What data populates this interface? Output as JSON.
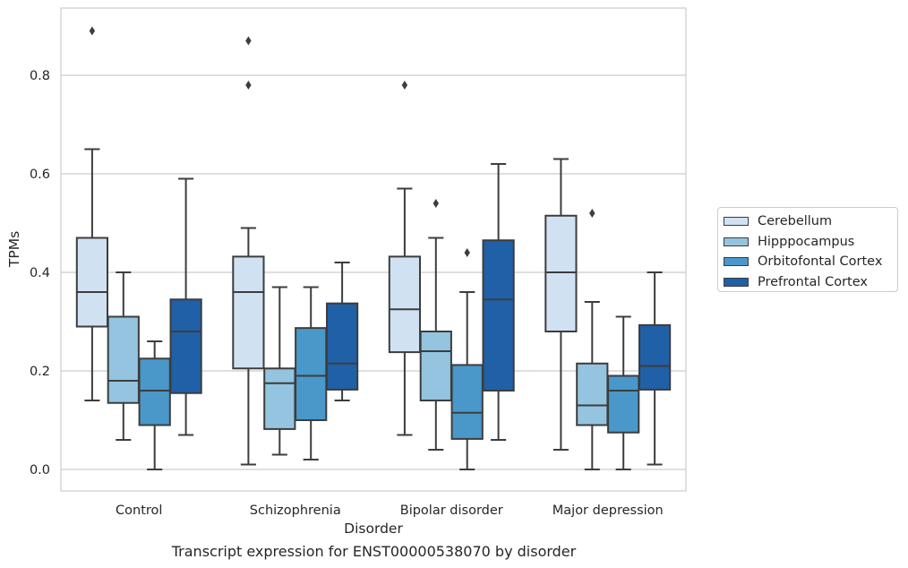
{
  "chart_data": {
    "type": "box",
    "xlabel": "Disorder",
    "ylabel": "TPMs",
    "caption": "Transcript expression for ENST00000538070 by disorder",
    "ylim": [
      -0.045,
      0.935
    ],
    "yticks": [
      "0.0",
      "0.2",
      "0.4",
      "0.6",
      "0.8"
    ],
    "ytick_values": [
      0.0,
      0.2,
      0.4,
      0.6,
      0.8
    ],
    "grid": "horizontal",
    "legend_position": "right",
    "categories": [
      "Control",
      "Schizophrenia",
      "Bipolar disorder",
      "Major depression"
    ],
    "series": [
      {
        "name": "Cerebellum",
        "color": "#d0e1f2",
        "boxes": [
          {
            "whislo": 0.14,
            "q1": 0.29,
            "med": 0.36,
            "q3": 0.47,
            "whishi": 0.65,
            "fliers": [
              0.89
            ]
          },
          {
            "whislo": 0.01,
            "q1": 0.205,
            "med": 0.36,
            "q3": 0.432,
            "whishi": 0.49,
            "fliers": [
              0.78,
              0.87
            ]
          },
          {
            "whislo": 0.07,
            "q1": 0.238,
            "med": 0.325,
            "q3": 0.432,
            "whishi": 0.57,
            "fliers": [
              0.78
            ]
          },
          {
            "whislo": 0.04,
            "q1": 0.28,
            "med": 0.4,
            "q3": 0.515,
            "whishi": 0.63,
            "fliers": []
          }
        ]
      },
      {
        "name": "Hipppocampus",
        "color": "#94c4df",
        "boxes": [
          {
            "whislo": 0.06,
            "q1": 0.135,
            "med": 0.18,
            "q3": 0.31,
            "whishi": 0.4,
            "fliers": []
          },
          {
            "whislo": 0.03,
            "q1": 0.082,
            "med": 0.175,
            "q3": 0.205,
            "whishi": 0.37,
            "fliers": []
          },
          {
            "whislo": 0.04,
            "q1": 0.14,
            "med": 0.24,
            "q3": 0.28,
            "whishi": 0.47,
            "fliers": [
              0.54
            ]
          },
          {
            "whislo": 0.0,
            "q1": 0.09,
            "med": 0.13,
            "q3": 0.215,
            "whishi": 0.34,
            "fliers": [
              0.52
            ]
          }
        ]
      },
      {
        "name": "Orbitofontal Cortex",
        "color": "#4a98c9",
        "boxes": [
          {
            "whislo": 0.0,
            "q1": 0.09,
            "med": 0.16,
            "q3": 0.225,
            "whishi": 0.26,
            "fliers": []
          },
          {
            "whislo": 0.02,
            "q1": 0.1,
            "med": 0.19,
            "q3": 0.287,
            "whishi": 0.37,
            "fliers": []
          },
          {
            "whislo": 0.0,
            "q1": 0.062,
            "med": 0.115,
            "q3": 0.212,
            "whishi": 0.36,
            "fliers": [
              0.44
            ]
          },
          {
            "whislo": 0.0,
            "q1": 0.075,
            "med": 0.16,
            "q3": 0.19,
            "whishi": 0.31,
            "fliers": []
          }
        ]
      },
      {
        "name": "Prefrontal Cortex",
        "color": "#2060a7",
        "boxes": [
          {
            "whislo": 0.07,
            "q1": 0.155,
            "med": 0.28,
            "q3": 0.345,
            "whishi": 0.59,
            "fliers": []
          },
          {
            "whislo": 0.14,
            "q1": 0.162,
            "med": 0.215,
            "q3": 0.337,
            "whishi": 0.42,
            "fliers": []
          },
          {
            "whislo": 0.06,
            "q1": 0.16,
            "med": 0.345,
            "q3": 0.465,
            "whishi": 0.62,
            "fliers": []
          },
          {
            "whislo": 0.01,
            "q1": 0.162,
            "med": 0.21,
            "q3": 0.293,
            "whishi": 0.4,
            "fliers": []
          }
        ]
      }
    ]
  }
}
